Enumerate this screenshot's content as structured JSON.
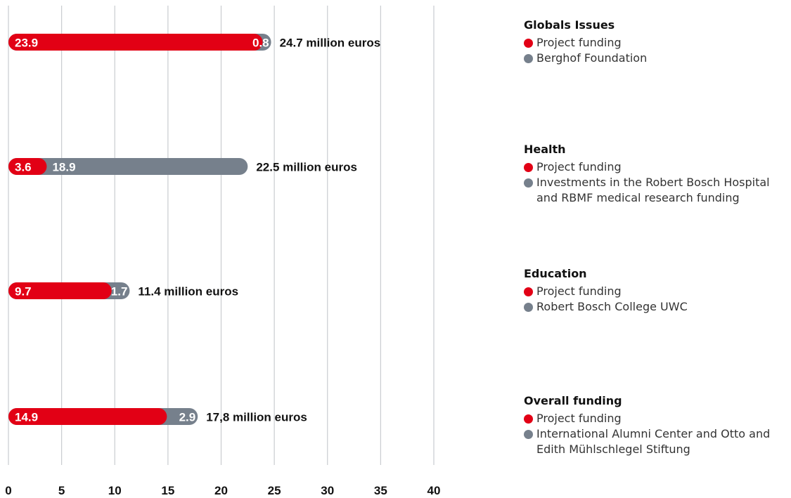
{
  "colors": {
    "project": "#e20015",
    "other": "#76808c",
    "grid": "#c9ccd0",
    "text": "#111111"
  },
  "chart_data": {
    "type": "bar",
    "orientation": "horizontal",
    "stacked": true,
    "xlim": [
      0,
      40
    ],
    "xticks": [
      "0",
      "5",
      "10",
      "15",
      "20",
      "25",
      "30",
      "35",
      "40"
    ],
    "grid": true,
    "legend_position": "right",
    "groups": [
      {
        "title": "Globals Issues",
        "total_label": "24.7 million euros",
        "segments": [
          {
            "name": "Project funding",
            "value": 23.9,
            "label": "23.9",
            "color": "#e20015"
          },
          {
            "name": "Berghof Foundation",
            "value": 0.8,
            "label": "0.8",
            "color": "#76808c"
          }
        ]
      },
      {
        "title": "Health",
        "total_label": "22.5 million euros",
        "segments": [
          {
            "name": "Project funding",
            "value": 3.6,
            "label": "3.6",
            "color": "#e20015"
          },
          {
            "name": "Investments in the Robert Bosch Hospital and RBMF medical research funding",
            "value": 18.9,
            "label": "18.9",
            "color": "#76808c"
          }
        ]
      },
      {
        "title": "Education",
        "total_label": "11.4 million euros",
        "segments": [
          {
            "name": "Project funding",
            "value": 9.7,
            "label": "9.7",
            "color": "#e20015"
          },
          {
            "name": "Robert Bosch College UWC",
            "value": 1.7,
            "label": "1.7",
            "color": "#76808c"
          }
        ]
      },
      {
        "title": "Overall funding",
        "total_label": "17,8 million euros",
        "segments": [
          {
            "name": "Project funding",
            "value": 14.9,
            "label": "14.9",
            "color": "#e20015"
          },
          {
            "name": "International Alumni Center and Otto and Edith Mühlschlegel Stiftung",
            "value": 2.9,
            "label": "2.9",
            "color": "#76808c"
          }
        ]
      }
    ]
  },
  "legend": [
    {
      "title": "Globals Issues",
      "items": [
        {
          "label": "Project funding",
          "color": "#e20015"
        },
        {
          "label": "Berghof Foundation",
          "color": "#76808c"
        }
      ]
    },
    {
      "title": "Health",
      "items": [
        {
          "label": "Project funding",
          "color": "#e20015"
        },
        {
          "label": "Investments in the Robert Bosch Hospital and RBMF medical research funding",
          "color": "#76808c"
        }
      ]
    },
    {
      "title": "Education",
      "items": [
        {
          "label": "Project funding",
          "color": "#e20015"
        },
        {
          "label": "Robert Bosch College UWC",
          "color": "#76808c"
        }
      ]
    },
    {
      "title": "Overall funding",
      "items": [
        {
          "label": "Project funding",
          "color": "#e20015"
        },
        {
          "label": "International Alumni Center and Otto and Edith Mühlschlegel Stiftung",
          "color": "#76808c"
        }
      ]
    }
  ]
}
